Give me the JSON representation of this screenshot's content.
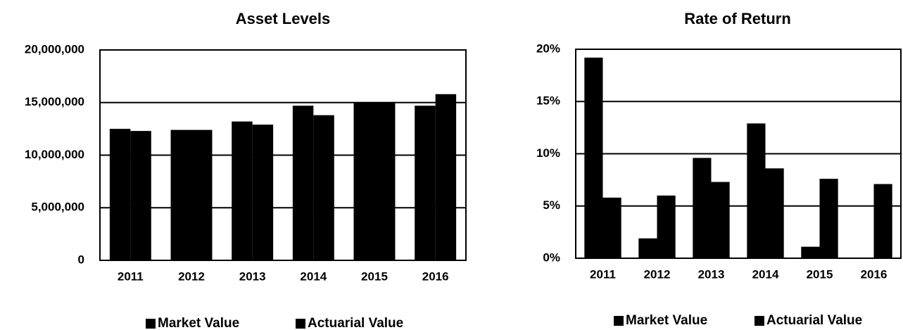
{
  "chart_data": [
    {
      "type": "bar",
      "title": "Asset Levels",
      "categories": [
        "2011",
        "2012",
        "2013",
        "2014",
        "2015",
        "2016"
      ],
      "series": [
        {
          "name": "Market Value",
          "color": "#000000",
          "values": [
            12500000,
            12400000,
            13200000,
            14700000,
            15000000,
            14700000
          ]
        },
        {
          "name": "Actuarial Value",
          "color": "#000000",
          "values": [
            12300000,
            12400000,
            12900000,
            13800000,
            15000000,
            15800000
          ]
        }
      ],
      "ylim": [
        0,
        20000000
      ],
      "yticks": [
        0,
        {
          "value": 5000000,
          "label": "5,000,000"
        },
        {
          "value": 10000000,
          "label": "10,000,000"
        },
        {
          "value": 15000000,
          "label": "15,000,000"
        },
        {
          "value": 20000000,
          "label": "20,000,000"
        }
      ],
      "grid": true,
      "legend": "bottom"
    },
    {
      "type": "bar",
      "title": "Rate of Return",
      "categories": [
        "2011",
        "2012",
        "2013",
        "2014",
        "2015",
        "2016"
      ],
      "series": [
        {
          "name": "Market Value",
          "color": "#000000",
          "values": [
            19.2,
            1.9,
            9.6,
            12.9,
            1.1,
            0
          ]
        },
        {
          "name": "Actuarial Value",
          "color": "#000000",
          "values": [
            5.8,
            6.0,
            7.3,
            8.6,
            7.6,
            7.1
          ]
        }
      ],
      "ylim": [
        0,
        20
      ],
      "yticks": [
        {
          "value": 0,
          "label": "0%"
        },
        {
          "value": 5,
          "label": "5%"
        },
        {
          "value": 10,
          "label": "10%"
        },
        {
          "value": 15,
          "label": "15%"
        },
        {
          "value": 20,
          "label": "20%"
        }
      ],
      "grid": true,
      "legend": "bottom"
    }
  ]
}
